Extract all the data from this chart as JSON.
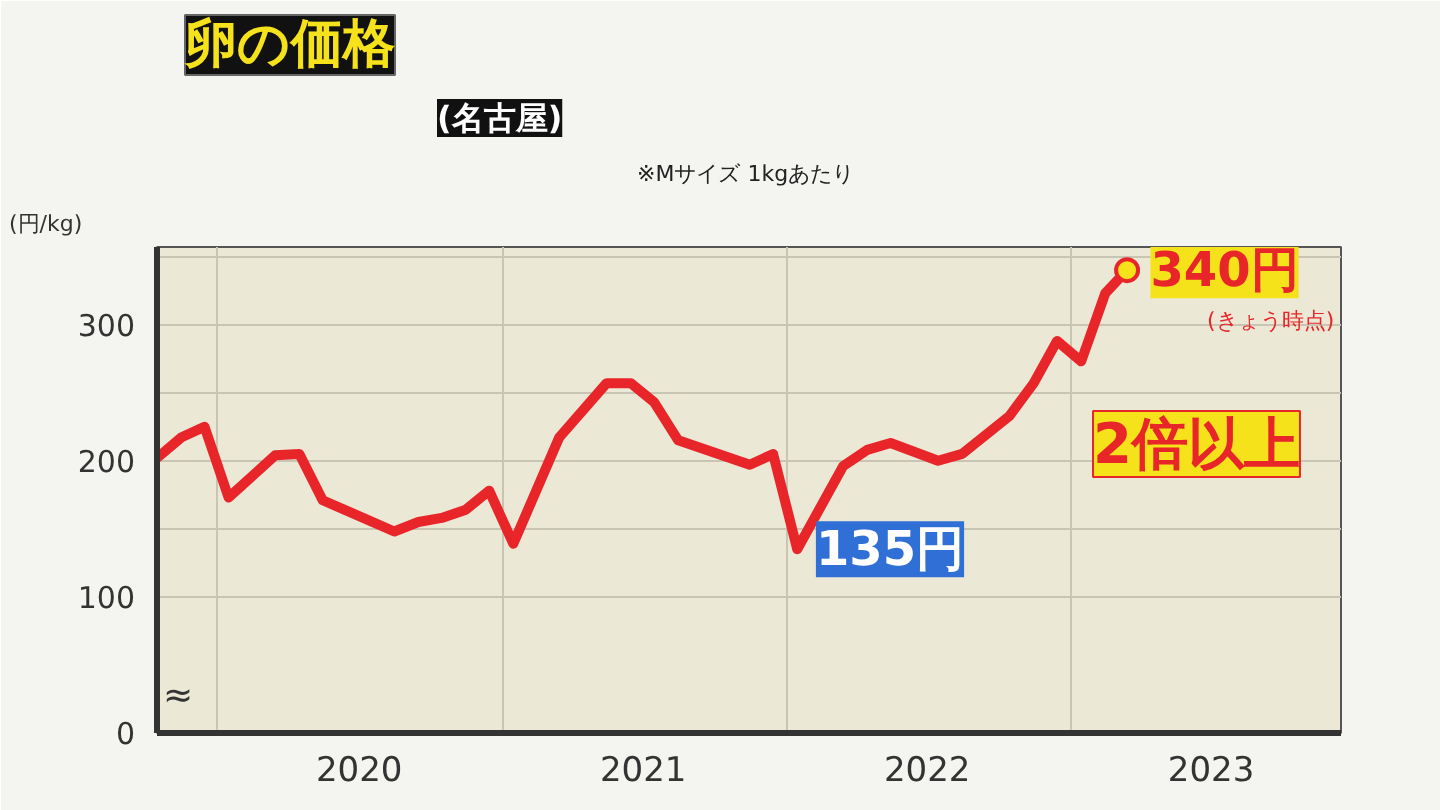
{
  "chart_data": {
    "type": "line",
    "title": "卵の価格",
    "subtitle": "(名古屋)",
    "ylabel": "(円/kg)",
    "x": [
      "2019-10-15",
      "2019-11-15",
      "2019-12-15",
      "2020-01-15",
      "2020-03-15",
      "2020-04-15",
      "2020-05-15",
      "2020-08-15",
      "2020-09-15",
      "2020-10-15",
      "2020-11-15",
      "2020-12-15",
      "2021-01-15",
      "2021-03-15",
      "2021-05-15",
      "2021-06-15",
      "2021-07-15",
      "2021-08-15",
      "2021-11-15",
      "2021-12-15",
      "2022-01-15",
      "2022-03-15",
      "2022-04-15",
      "2022-05-15",
      "2022-07-15",
      "2022-08-15",
      "2022-10-15",
      "2022-11-15",
      "2022-12-15",
      "2023-01-15",
      "2023-02-15",
      "2023-03-15"
    ],
    "series": [
      {
        "color": "#e8262a",
        "values": [
          202,
          217,
          225,
          173,
          204,
          205,
          171,
          148,
          155,
          158,
          164,
          178,
          139,
          217,
          257,
          257,
          243,
          215,
          197,
          205,
          135,
          196,
          208,
          213,
          200,
          205,
          233,
          257,
          288,
          273,
          323,
          340
        ]
      }
    ],
    "xlim": [
      "2019-10-15",
      "2023-12-15"
    ],
    "xticks": [
      {
        "value": "2020-01-01",
        "label": null
      },
      {
        "value": "2020-07-01",
        "label": "2020"
      },
      {
        "value": "2021-01-01",
        "label": null
      },
      {
        "value": "2021-07-01",
        "label": "2021"
      },
      {
        "value": "2022-01-01",
        "label": null
      },
      {
        "value": "2022-07-01",
        "label": "2022"
      },
      {
        "value": "2023-01-01",
        "label": null
      },
      {
        "value": "2023-07-01",
        "label": "2023"
      }
    ],
    "ylim": [
      0,
      357
    ],
    "yticks": [
      0,
      100,
      {
        "value": 150,
        "label": null
      },
      200,
      {
        "value": 250,
        "label": null
      },
      300,
      {
        "value": 350,
        "label": null
      }
    ],
    "grid": true,
    "marker": "none",
    "line_style": "solid",
    "annotations": [
      {
        "text": "340円",
        "x": "2023-03-15",
        "y": 340
      },
      "(きょう時点)",
      {
        "text": "135円",
        "x": "2022-01-15",
        "y": 135
      },
      "2倍以上",
      "※Mサイズ 1kgあたり",
      "≈"
    ]
  }
}
